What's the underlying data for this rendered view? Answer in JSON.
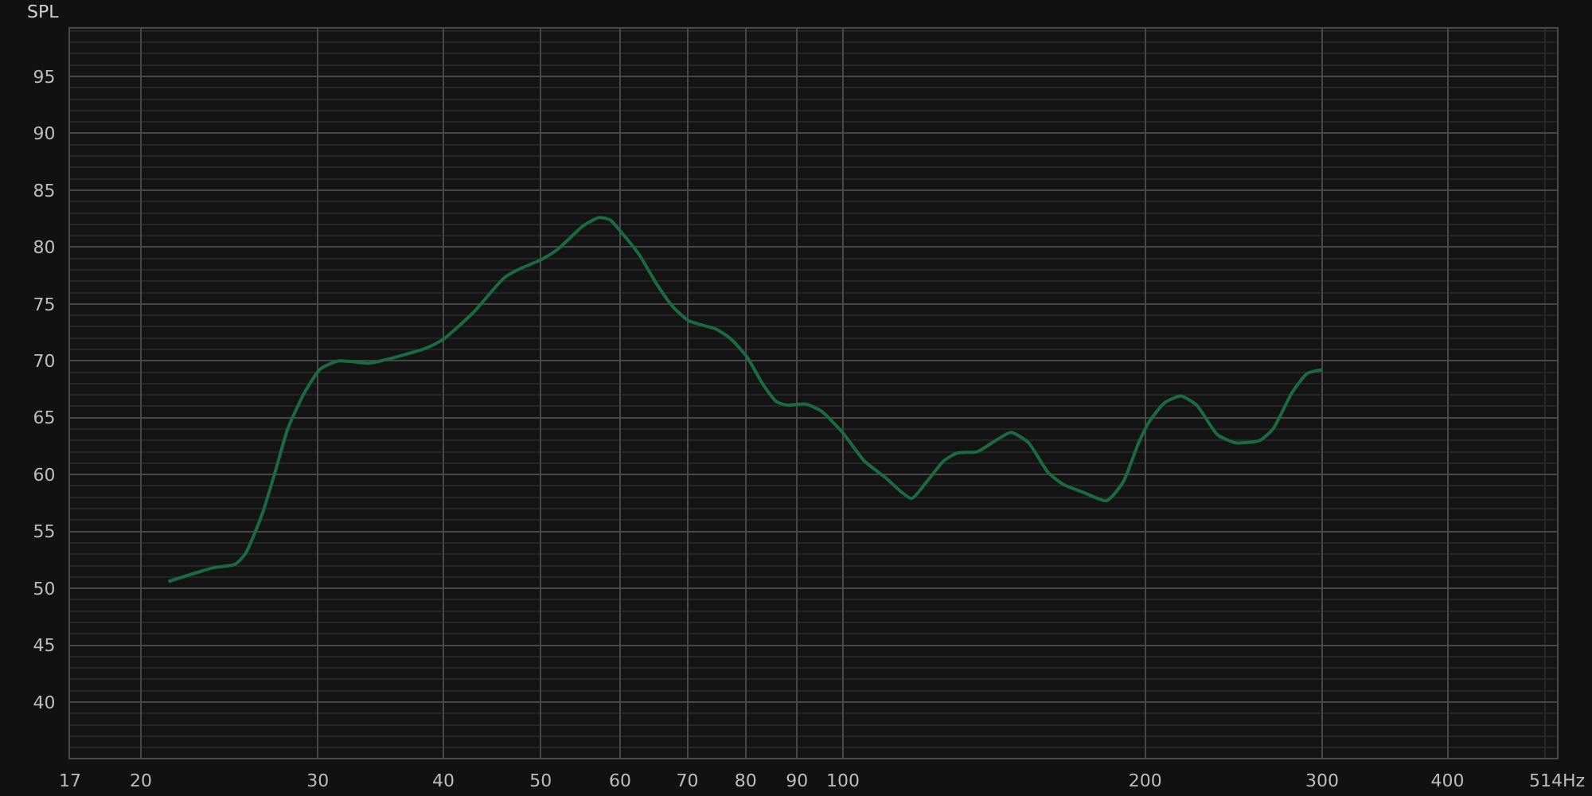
{
  "chart_data": {
    "type": "line",
    "ylabel": "SPL",
    "log": "x",
    "grid": true,
    "marker": "none",
    "line_style": "solid",
    "x": [
      21.3,
      23.6,
      24.8,
      25.4,
      26.4,
      27.2,
      28.0,
      29.1,
      30.2,
      31.5,
      33.8,
      36.1,
      38.4,
      40.0,
      42.8,
      46.0,
      47.7,
      50.1,
      52.0,
      55.2,
      57.2,
      58.6,
      59.9,
      62.6,
      65.4,
      67.8,
      70.3,
      74.7,
      77.4,
      80.3,
      83.3,
      85.9,
      88.0,
      91.7,
      95.1,
      99.9,
      105,
      110,
      117,
      121,
      126,
      130,
      136,
      142,
      147,
      153,
      160,
      166,
      174,
      183,
      190,
      197,
      202,
      209,
      217,
      225,
      236,
      246,
      260,
      268,
      280,
      290,
      300
    ],
    "series": [
      {
        "color": "#1a6b42",
        "values": [
          50.6,
          51.8,
          52.1,
          53.0,
          56.5,
          60.2,
          64.0,
          67.2,
          69.3,
          70.0,
          69.8,
          70.4,
          71.1,
          71.9,
          74.2,
          77.3,
          78.1,
          78.9,
          79.8,
          81.9,
          82.6,
          82.4,
          81.5,
          79.4,
          76.6,
          74.7,
          73.5,
          72.8,
          71.9,
          70.3,
          67.9,
          66.4,
          66.1,
          66.2,
          65.6,
          63.7,
          61.2,
          59.8,
          57.9,
          59.3,
          61.2,
          61.9,
          62.0,
          63.0,
          63.7,
          62.8,
          60.2,
          59.1,
          58.4,
          57.7,
          59.3,
          62.8,
          64.7,
          66.3,
          66.9,
          66.1,
          63.5,
          62.8,
          63.0,
          64.0,
          67.2,
          68.9,
          69.2
        ]
      }
    ],
    "xlim": [
      17,
      514
    ],
    "xticks": [
      17,
      20,
      30,
      40,
      50,
      60,
      70,
      80,
      90,
      100,
      200,
      300,
      400,
      {
        "value": 500,
        "label": null
      },
      {
        "value": 514,
        "label": "514Hz"
      }
    ],
    "ylim": [
      35.1,
      99.2
    ],
    "yticks": [
      {
        "value": 36,
        "label": null
      },
      {
        "value": 37,
        "label": null
      },
      {
        "value": 38,
        "label": null
      },
      {
        "value": 39,
        "label": null
      },
      40,
      {
        "value": 41,
        "label": null
      },
      {
        "value": 42,
        "label": null
      },
      {
        "value": 43,
        "label": null
      },
      {
        "value": 44,
        "label": null
      },
      45,
      {
        "value": 46,
        "label": null
      },
      {
        "value": 47,
        "label": null
      },
      {
        "value": 48,
        "label": null
      },
      {
        "value": 49,
        "label": null
      },
      50,
      {
        "value": 51,
        "label": null
      },
      {
        "value": 52,
        "label": null
      },
      {
        "value": 53,
        "label": null
      },
      {
        "value": 54,
        "label": null
      },
      55,
      {
        "value": 56,
        "label": null
      },
      {
        "value": 57,
        "label": null
      },
      {
        "value": 58,
        "label": null
      },
      {
        "value": 59,
        "label": null
      },
      60,
      {
        "value": 61,
        "label": null
      },
      {
        "value": 62,
        "label": null
      },
      {
        "value": 63,
        "label": null
      },
      {
        "value": 64,
        "label": null
      },
      65,
      {
        "value": 66,
        "label": null
      },
      {
        "value": 67,
        "label": null
      },
      {
        "value": 68,
        "label": null
      },
      {
        "value": 69,
        "label": null
      },
      70,
      {
        "value": 71,
        "label": null
      },
      {
        "value": 72,
        "label": null
      },
      {
        "value": 73,
        "label": null
      },
      {
        "value": 74,
        "label": null
      },
      75,
      {
        "value": 76,
        "label": null
      },
      {
        "value": 77,
        "label": null
      },
      {
        "value": 78,
        "label": null
      },
      {
        "value": 79,
        "label": null
      },
      80,
      {
        "value": 81,
        "label": null
      },
      {
        "value": 82,
        "label": null
      },
      {
        "value": 83,
        "label": null
      },
      {
        "value": 84,
        "label": null
      },
      85,
      {
        "value": 86,
        "label": null
      },
      {
        "value": 87,
        "label": null
      },
      {
        "value": 88,
        "label": null
      },
      {
        "value": 89,
        "label": null
      },
      90,
      {
        "value": 91,
        "label": null
      },
      {
        "value": 92,
        "label": null
      },
      {
        "value": 93,
        "label": null
      },
      {
        "value": 94,
        "label": null
      },
      95,
      {
        "value": 96,
        "label": null
      },
      {
        "value": 97,
        "label": null
      },
      {
        "value": 98,
        "label": null
      },
      {
        "value": 99,
        "label": null
      }
    ],
    "ref_lines": [
      {
        "axis": "x",
        "value": 100,
        "color": "#b4b4b4"
      }
    ]
  }
}
